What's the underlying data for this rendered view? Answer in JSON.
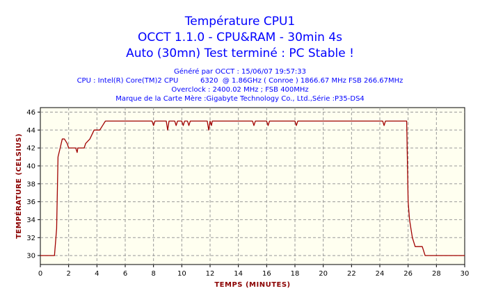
{
  "header": {
    "title_lines": [
      "Température CPU1",
      "OCCT 1.1.0 - CPU&RAM - 30min 4s",
      "Auto (30mn) Test terminé : PC Stable !"
    ],
    "info_lines": [
      "Généré par OCCT : 15/06/07 19:57:33",
      "CPU : Intel(R) Core(TM)2 CPU          6320  @ 1.86GHz ( Conroe ) 1866.67 MHz FSB 266.67MHz",
      "Overclock : 2400.02 MHz ; FSB 400MHz",
      "Marque de la Carte Mère :Gigabyte Technology Co., Ltd.,Série :P35-DS4"
    ]
  },
  "colors": {
    "background": "#ffffff",
    "plot_background": "#fffff0",
    "line": "#a00000",
    "grid": "#999999",
    "title": "#0000ff",
    "axis_title": "#8b0000"
  },
  "chart_data": {
    "type": "line",
    "xlabel": "Temps (minutes)",
    "ylabel": "Température (Celsius)",
    "xlim": [
      0,
      30
    ],
    "ylim": [
      29,
      46.5
    ],
    "xticks": [
      0,
      2,
      4,
      6,
      8,
      10,
      12,
      14,
      16,
      18,
      20,
      22,
      24,
      26,
      28,
      30
    ],
    "yticks": [
      30,
      32,
      34,
      36,
      38,
      40,
      42,
      44,
      46
    ],
    "grid": true,
    "series": [
      {
        "x": [
          0,
          1.0,
          1.15,
          1.25,
          1.4,
          1.55,
          1.7,
          1.9,
          2.0,
          2.2,
          2.5,
          2.6,
          2.65,
          2.75,
          2.9,
          3.1,
          3.2,
          3.5,
          3.8,
          4.0,
          4.2,
          4.4,
          4.6,
          7.9,
          8.0,
          8.1,
          8.9,
          9.0,
          9.1,
          9.5,
          9.6,
          9.7,
          10.0,
          10.1,
          10.2,
          10.4,
          10.5,
          10.6,
          11.8,
          11.9,
          12.0,
          12.1,
          12.15,
          12.3,
          15.0,
          15.1,
          15.2,
          16.0,
          16.1,
          16.2,
          18.0,
          18.1,
          18.2,
          24.2,
          24.3,
          24.4,
          25.9,
          26.0,
          26.1,
          26.2,
          26.3,
          26.5,
          26.7,
          27.0,
          27.2,
          30.0
        ],
        "y": [
          30,
          30,
          33,
          41,
          42,
          43,
          43,
          42.5,
          42,
          42,
          42,
          41.5,
          42,
          42,
          42,
          42,
          42.5,
          43,
          44,
          44,
          44,
          44.5,
          45,
          45,
          44.5,
          45,
          45,
          44,
          45,
          45,
          44.5,
          45,
          45,
          44.5,
          45,
          45,
          44.5,
          45,
          45,
          44,
          45,
          44.5,
          45,
          45,
          45,
          44.5,
          45,
          45,
          44.5,
          45,
          45,
          44.5,
          45,
          45,
          44.5,
          45,
          45,
          36,
          34,
          33,
          32,
          31,
          31,
          31,
          30,
          30
        ]
      }
    ]
  }
}
